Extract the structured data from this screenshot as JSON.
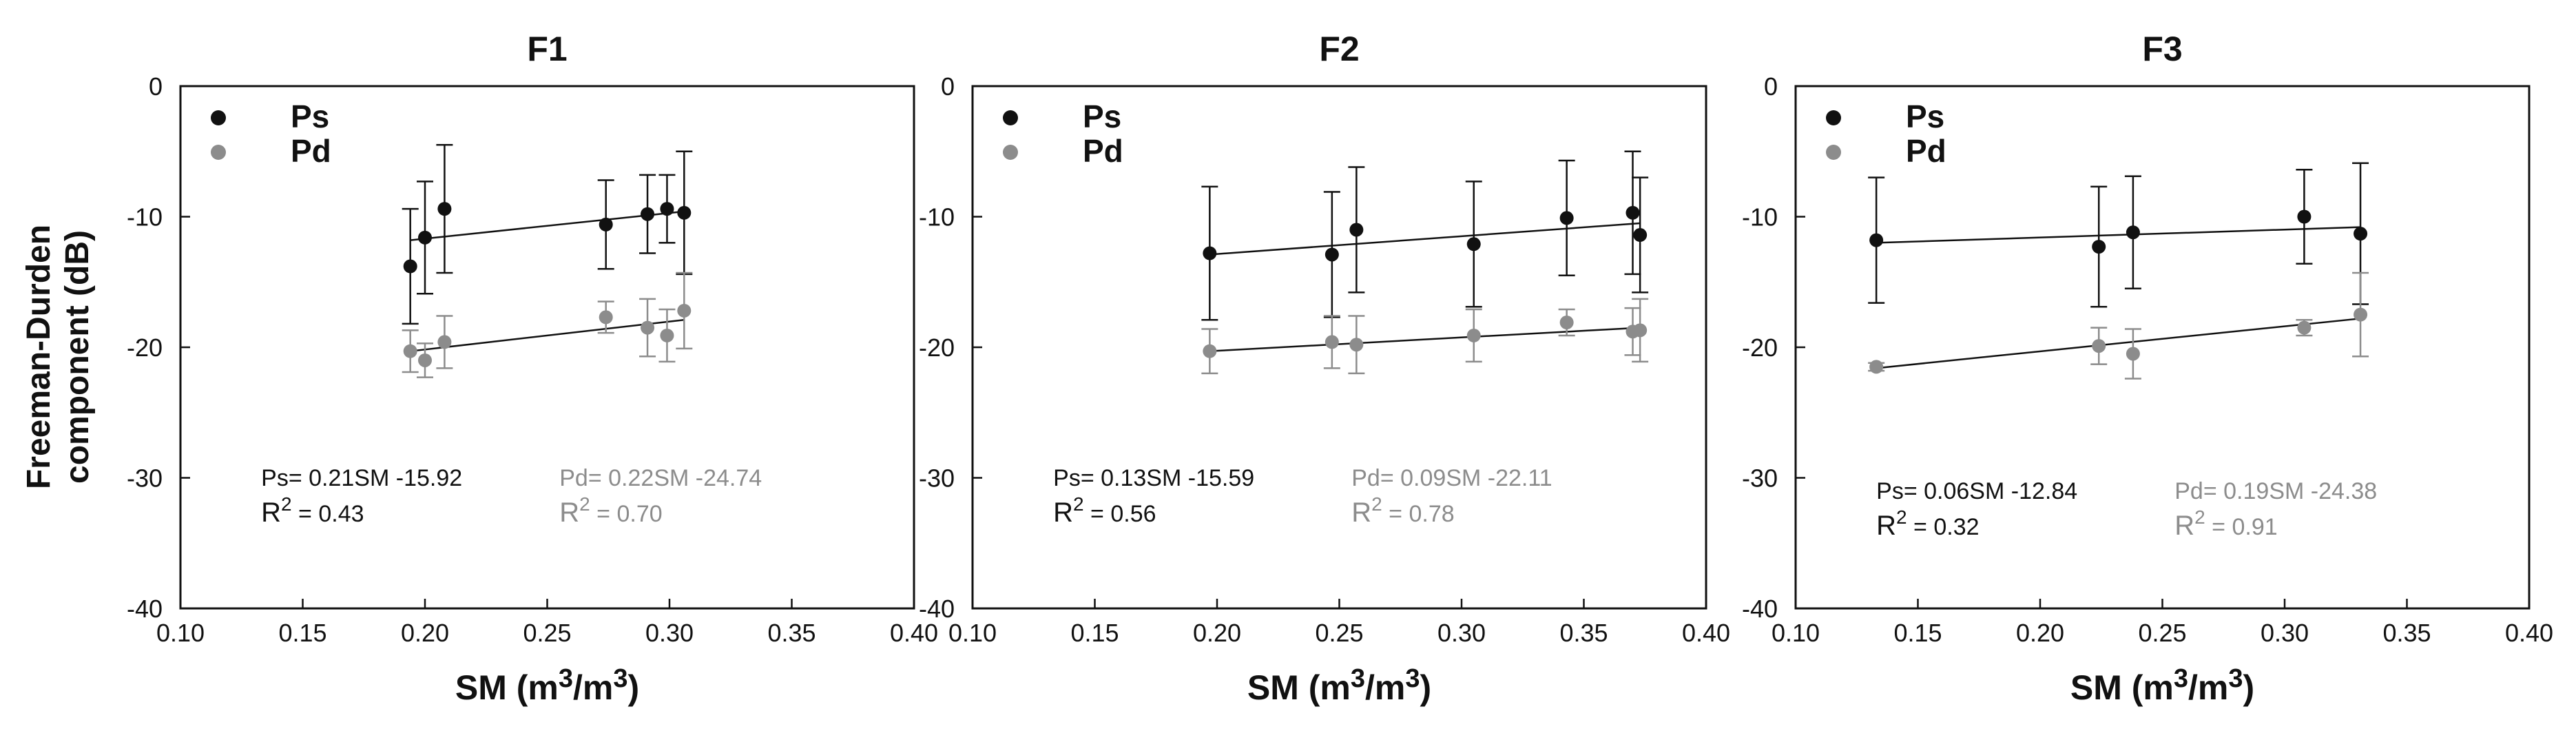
{
  "colors": {
    "ps": "#111111",
    "pd": "#8c8c8c",
    "axis": "#111111"
  },
  "y_axis_label_line1": "Freeman-Durden",
  "y_axis_label_line2": "component (dB)",
  "chart_data": [
    {
      "type": "scatter",
      "title": "F1",
      "xlabel_main": "SM (m",
      "xlabel_sup1": "3",
      "xlabel_mid": "/m",
      "xlabel_sup2": "3",
      "xlabel_end": ")",
      "xlim": [
        0.1,
        0.4
      ],
      "ylim": [
        -40,
        0
      ],
      "xticks": [
        "0.10",
        "0.15",
        "0.20",
        "0.25",
        "0.30",
        "0.35",
        "0.40"
      ],
      "yticks": [
        "0",
        "-10",
        "-20",
        "-30",
        "-40"
      ],
      "legend": [
        "Ps",
        "Pd"
      ],
      "series": [
        {
          "name": "Ps",
          "x": [
            0.194,
            0.2,
            0.208,
            0.274,
            0.291,
            0.299,
            0.306
          ],
          "y": [
            -13.8,
            -11.6,
            -9.4,
            -10.6,
            -9.8,
            -9.4,
            -9.7
          ],
          "err": [
            4.4,
            4.3,
            4.9,
            3.4,
            3.0,
            2.6,
            4.7
          ],
          "fit": {
            "x": [
              0.194,
              0.306
            ],
            "y": [
              -11.8,
              -9.6
            ]
          },
          "equation": "Ps= 0.21SM -15.92",
          "r2_label": "R",
          "r2_sup": "2",
          "r2_value": " = 0.43"
        },
        {
          "name": "Pd",
          "x": [
            0.194,
            0.2,
            0.208,
            0.274,
            0.291,
            0.299,
            0.306
          ],
          "y": [
            -20.3,
            -21.0,
            -19.6,
            -17.7,
            -18.5,
            -19.1,
            -17.2
          ],
          "err": [
            1.6,
            1.3,
            2.0,
            1.2,
            2.2,
            2.0,
            2.9
          ],
          "fit": {
            "x": [
              0.194,
              0.306
            ],
            "y": [
              -20.3,
              -17.9
            ]
          },
          "equation": "Pd= 0.22SM -24.74",
          "r2_label": "R",
          "r2_sup": "2",
          "r2_value": " = 0.70"
        }
      ]
    },
    {
      "type": "scatter",
      "title": "F2",
      "xlabel_main": "SM (m",
      "xlabel_sup1": "3",
      "xlabel_mid": "/m",
      "xlabel_sup2": "3",
      "xlabel_end": ")",
      "xlim": [
        0.1,
        0.4
      ],
      "ylim": [
        -40,
        0
      ],
      "xticks": [
        "0.10",
        "0.15",
        "0.20",
        "0.25",
        "0.30",
        "0.35",
        "0.40"
      ],
      "yticks": [
        "0",
        "-10",
        "-20",
        "-30",
        "-40"
      ],
      "legend": [
        "Ps",
        "Pd"
      ],
      "series": [
        {
          "name": "Ps",
          "x": [
            0.197,
            0.247,
            0.257,
            0.305,
            0.343,
            0.37,
            0.373
          ],
          "y": [
            -12.8,
            -12.9,
            -11.0,
            -12.1,
            -10.1,
            -9.7,
            -11.4
          ],
          "err": [
            5.1,
            4.8,
            4.8,
            4.8,
            4.4,
            4.7,
            4.4
          ],
          "fit": {
            "x": [
              0.197,
              0.373
            ],
            "y": [
              -12.9,
              -10.5
            ]
          },
          "equation": "Ps= 0.13SM -15.59",
          "r2_label": "R",
          "r2_sup": "2",
          "r2_value": " = 0.56"
        },
        {
          "name": "Pd",
          "x": [
            0.197,
            0.247,
            0.257,
            0.305,
            0.343,
            0.37,
            0.373
          ],
          "y": [
            -20.3,
            -19.6,
            -19.8,
            -19.1,
            -18.1,
            -18.8,
            -18.7
          ],
          "err": [
            1.7,
            2.0,
            2.2,
            2.0,
            1.0,
            1.8,
            2.4
          ],
          "fit": {
            "x": [
              0.197,
              0.373
            ],
            "y": [
              -20.3,
              -18.5
            ]
          },
          "equation": "Pd= 0.09SM -22.11",
          "r2_label": "R",
          "r2_sup": "2",
          "r2_value": " = 0.78"
        }
      ]
    },
    {
      "type": "scatter",
      "title": "F3",
      "xlabel_main": "SM (m",
      "xlabel_sup1": "3",
      "xlabel_mid": "/m",
      "xlabel_sup2": "3",
      "xlabel_end": ")",
      "xlim": [
        0.1,
        0.4
      ],
      "ylim": [
        -40,
        0
      ],
      "xticks": [
        "0.10",
        "0.15",
        "0.20",
        "0.25",
        "0.30",
        "0.35",
        "0.40"
      ],
      "yticks": [
        "0",
        "-10",
        "-20",
        "-30",
        "-40"
      ],
      "legend": [
        "Ps",
        "Pd"
      ],
      "series": [
        {
          "name": "Ps",
          "x": [
            0.133,
            0.224,
            0.238,
            0.308,
            0.331
          ],
          "y": [
            -11.8,
            -12.3,
            -11.2,
            -10.0,
            -11.3
          ],
          "err": [
            4.8,
            4.6,
            4.3,
            3.6,
            5.4
          ],
          "fit": {
            "x": [
              0.133,
              0.331
            ],
            "y": [
              -12.0,
              -10.8
            ]
          },
          "equation": "Ps= 0.06SM -12.84",
          "r2_label": "R",
          "r2_sup": "2",
          "r2_value": " = 0.32"
        },
        {
          "name": "Pd",
          "x": [
            0.133,
            0.224,
            0.238,
            0.308,
            0.331
          ],
          "y": [
            -21.5,
            -19.9,
            -20.5,
            -18.5,
            -17.5
          ],
          "err": [
            0.3,
            1.4,
            1.9,
            0.6,
            3.2
          ],
          "fit": {
            "x": [
              0.133,
              0.331
            ],
            "y": [
              -21.6,
              -17.8
            ]
          },
          "equation": "Pd= 0.19SM -24.38",
          "r2_label": "R",
          "r2_sup": "2",
          "r2_value": " = 0.91"
        }
      ]
    }
  ]
}
